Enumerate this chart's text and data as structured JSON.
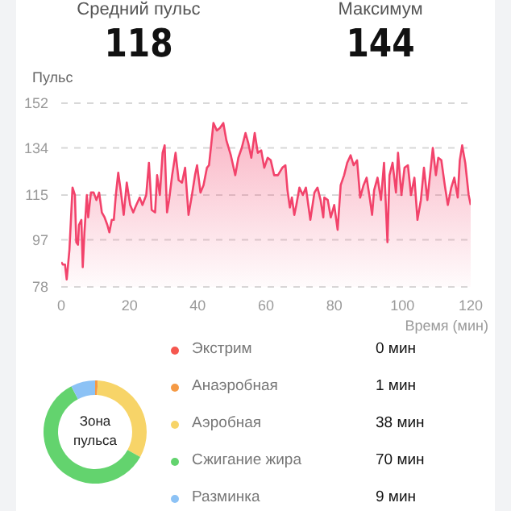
{
  "chart_data": [
    {
      "type": "area",
      "annotations": [
        "Средний пульс",
        "118",
        "Максимум",
        "144"
      ],
      "ylabel": "Пульс",
      "xlabel": "Время (мин)",
      "xlim": [
        0,
        120
      ],
      "xticks": [
        0,
        20,
        40,
        60,
        80,
        100,
        120
      ],
      "ylim": [
        78,
        152
      ],
      "yticks": [
        78,
        97,
        115,
        134,
        152
      ],
      "grid": "y",
      "series": [
        {
          "color": "#f2436b",
          "x": [
            0,
            0.5,
            1.1,
            1.6,
            2.4,
            3.3,
            4,
            4.4,
            4.9,
            5.2,
            5.9,
            6.3,
            6.8,
            7.5,
            7.9,
            8.7,
            9.5,
            10.3,
            11.1,
            11.9,
            12.7,
            13.5,
            14.1,
            14.8,
            15.4,
            16,
            16.7,
            17.5,
            18.3,
            19.2,
            20.2,
            21.1,
            22,
            23,
            23.8,
            24.9,
            25.7,
            26.5,
            27.5,
            28.1,
            28.9,
            29.7,
            30.3,
            31,
            31.6,
            32.5,
            33.5,
            34.4,
            35.4,
            36.3,
            37.3,
            38.3,
            39.2,
            39.8,
            40.8,
            41.7,
            42.7,
            43.3,
            44,
            44.6,
            45.6,
            46.5,
            47.5,
            48.4,
            49.7,
            51,
            51.9,
            52.9,
            54,
            54.8,
            55.7,
            56.7,
            57.6,
            58.6,
            59.5,
            60.5,
            61.4,
            62.4,
            63.5,
            64.8,
            65.7,
            66.3,
            67,
            67.6,
            68.3,
            68.9,
            69.8,
            70.8,
            71.7,
            73,
            74.2,
            75.1,
            76,
            76.8,
            77.1,
            78.1,
            79,
            80,
            81,
            81.9,
            82.9,
            83.8,
            84.8,
            85.7,
            86.7,
            87.6,
            88.6,
            89.5,
            90.5,
            91.1,
            91.7,
            92.7,
            93.7,
            94.6,
            95.6,
            96.2,
            97.1,
            98.1,
            98.7,
            99.7,
            100.6,
            101.6,
            102.5,
            103.5,
            104.4,
            105.4,
            106.3,
            107.3,
            108.3,
            108.9,
            109.8,
            110.5,
            111.4,
            112.4,
            113.3,
            114.3,
            115.2,
            116.2,
            116.8,
            117.5,
            118.4,
            119.4,
            120
          ],
          "values": [
            88,
            87,
            87,
            81,
            93,
            118,
            115,
            96,
            95,
            103,
            105,
            86,
            100,
            115,
            106,
            116,
            116,
            113,
            116,
            108,
            106,
            103,
            100,
            105,
            105,
            115,
            124,
            116,
            107,
            120,
            111,
            108,
            111,
            114,
            111,
            115,
            128,
            109,
            108,
            123,
            115,
            132,
            135,
            108,
            113,
            123,
            132,
            121,
            120,
            126,
            107,
            115,
            123,
            127,
            116,
            119,
            126,
            127,
            136,
            144,
            141,
            142,
            144,
            137,
            131,
            123,
            130,
            134,
            140,
            136,
            130,
            140,
            132,
            133,
            126,
            130,
            129,
            123,
            123,
            126,
            127,
            117,
            110,
            114,
            107,
            111,
            118,
            115,
            118,
            105,
            116,
            118,
            113,
            106,
            114,
            113,
            106,
            111,
            101,
            119,
            123,
            128,
            131,
            127,
            129,
            114,
            119,
            122,
            113,
            107,
            117,
            122,
            113,
            128,
            96,
            123,
            128,
            116,
            132,
            115,
            126,
            127,
            115,
            122,
            105,
            113,
            126,
            113,
            126,
            134,
            123,
            130,
            129,
            119,
            111,
            118,
            122,
            114,
            129,
            135,
            128,
            115,
            111
          ]
        }
      ]
    },
    {
      "type": "donut",
      "title": "Зона пульса",
      "legend": "right",
      "categories": [
        "Экстрим",
        "Анаэробная",
        "Аэробная",
        "Сжигание жира",
        "Разминка"
      ],
      "values": [
        0,
        1,
        38,
        70,
        9
      ],
      "value_labels": [
        "0 мин",
        "1 мин",
        "38 мин",
        "70 мин",
        "9 мин"
      ],
      "colors": [
        "#f5574f",
        "#f59a45",
        "#f7d468",
        "#63d36e",
        "#8cc2f5"
      ]
    }
  ]
}
